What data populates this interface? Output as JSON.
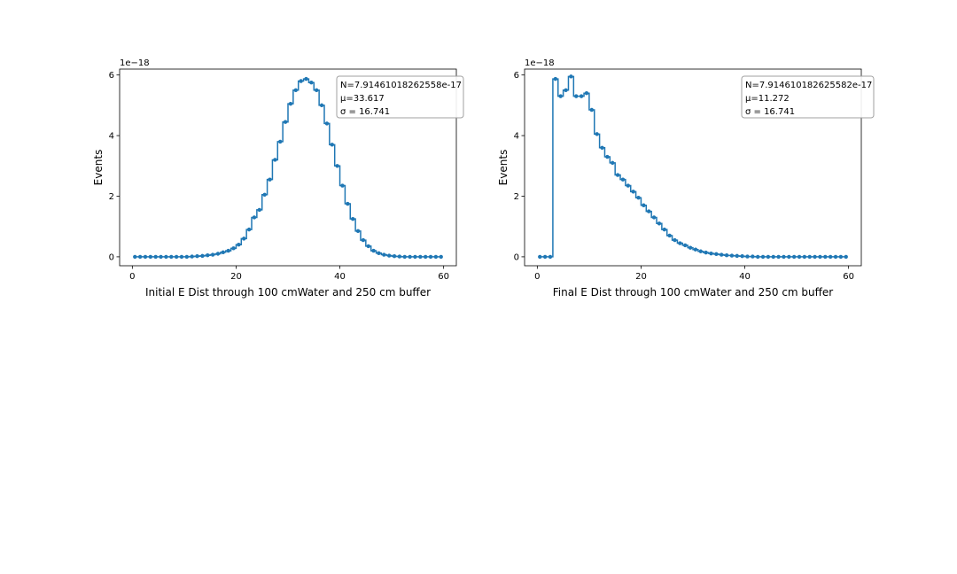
{
  "chart_data": [
    {
      "type": "line",
      "title": "",
      "xlabel": "Initial E Dist through 100 cmWater and 250 cm buffer",
      "ylabel": "Events",
      "y_offset_label": "1e−18",
      "xlim": [
        -2.45,
        62.45
      ],
      "ylim": [
        -0.295,
        6.195
      ],
      "xticks": [
        0,
        20,
        40,
        60
      ],
      "yticks": [
        0,
        2,
        4,
        6
      ],
      "grid": false,
      "legend": "none",
      "color": "#1f77b4",
      "step": "mid",
      "stats": [
        "N=7.91461018262558e-17",
        "μ=33.617",
        "σ = 16.741"
      ],
      "x": [
        0.5,
        1.5,
        2.5,
        3.5,
        4.5,
        5.5,
        6.5,
        7.5,
        8.5,
        9.5,
        10.5,
        11.5,
        12.5,
        13.5,
        14.5,
        15.5,
        16.5,
        17.5,
        18.5,
        19.5,
        20.5,
        21.5,
        22.5,
        23.5,
        24.5,
        25.5,
        26.5,
        27.5,
        28.5,
        29.5,
        30.5,
        31.5,
        32.5,
        33.5,
        34.5,
        35.5,
        36.5,
        37.5,
        38.5,
        39.5,
        40.5,
        41.5,
        42.5,
        43.5,
        44.5,
        45.5,
        46.5,
        47.5,
        48.5,
        49.5,
        50.5,
        51.5,
        52.5,
        53.5,
        54.5,
        55.5,
        56.5,
        57.5,
        58.5,
        59.5
      ],
      "values": [
        0,
        0,
        0,
        0,
        0,
        0,
        0,
        0,
        0,
        0,
        0,
        0.01,
        0.02,
        0.03,
        0.05,
        0.07,
        0.1,
        0.15,
        0.2,
        0.28,
        0.4,
        0.6,
        0.9,
        1.3,
        1.55,
        2.05,
        2.55,
        3.2,
        3.8,
        4.45,
        5.05,
        5.5,
        5.8,
        5.87,
        5.75,
        5.5,
        5.0,
        4.4,
        3.7,
        3.0,
        2.35,
        1.75,
        1.25,
        0.85,
        0.55,
        0.35,
        0.2,
        0.12,
        0.07,
        0.04,
        0.02,
        0.01,
        0,
        0,
        0,
        0,
        0,
        0,
        0,
        0
      ]
    },
    {
      "type": "line",
      "title": "",
      "xlabel": "Final E Dist through 100 cmWater and 250 cm buffer",
      "ylabel": "Events",
      "y_offset_label": "1e−18",
      "xlim": [
        -2.45,
        62.45
      ],
      "ylim": [
        -0.295,
        6.195
      ],
      "xticks": [
        0,
        20,
        40,
        60
      ],
      "yticks": [
        0,
        2,
        4,
        6
      ],
      "grid": false,
      "legend": "none",
      "color": "#1f77b4",
      "step": "mid",
      "stats": [
        "N=7.914610182625582e-17",
        "μ=11.272",
        "σ = 16.741"
      ],
      "x": [
        0.5,
        1.5,
        2.5,
        3.5,
        4.5,
        5.5,
        6.5,
        7.5,
        8.5,
        9.5,
        10.5,
        11.5,
        12.5,
        13.5,
        14.5,
        15.5,
        16.5,
        17.5,
        18.5,
        19.5,
        20.5,
        21.5,
        22.5,
        23.5,
        24.5,
        25.5,
        26.5,
        27.5,
        28.5,
        29.5,
        30.5,
        31.5,
        32.5,
        33.5,
        34.5,
        35.5,
        36.5,
        37.5,
        38.5,
        39.5,
        40.5,
        41.5,
        42.5,
        43.5,
        44.5,
        45.5,
        46.5,
        47.5,
        48.5,
        49.5,
        50.5,
        51.5,
        52.5,
        53.5,
        54.5,
        55.5,
        56.5,
        57.5,
        58.5,
        59.5
      ],
      "values": [
        0,
        0,
        0,
        5.87,
        5.3,
        5.5,
        5.95,
        5.3,
        5.3,
        5.4,
        4.85,
        4.05,
        3.6,
        3.3,
        3.1,
        2.7,
        2.55,
        2.35,
        2.15,
        1.95,
        1.7,
        1.5,
        1.3,
        1.1,
        0.9,
        0.7,
        0.55,
        0.45,
        0.38,
        0.3,
        0.24,
        0.18,
        0.14,
        0.11,
        0.09,
        0.07,
        0.05,
        0.04,
        0.03,
        0.02,
        0.01,
        0.01,
        0,
        0,
        0,
        0,
        0,
        0,
        0,
        0,
        0,
        0,
        0,
        0,
        0,
        0,
        0,
        0,
        0,
        0
      ]
    }
  ]
}
